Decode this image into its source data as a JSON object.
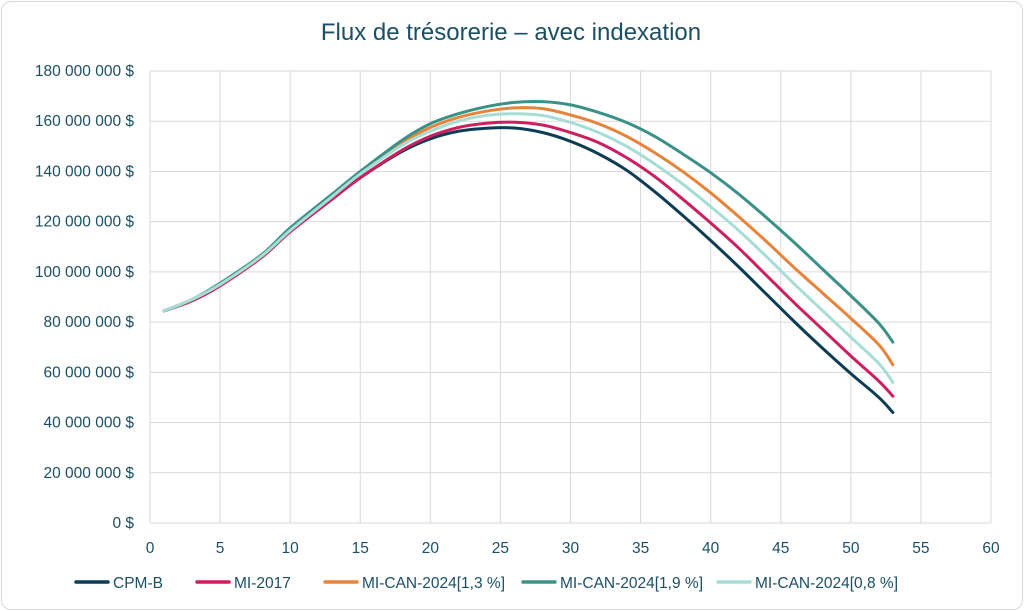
{
  "chart_data": {
    "type": "line",
    "title": "Flux de trésorerie – avec indexation",
    "xlabel": "",
    "ylabel": "",
    "xlim": [
      0,
      60
    ],
    "ylim": [
      0,
      180000000
    ],
    "x_ticks": [
      0,
      5,
      10,
      15,
      20,
      25,
      30,
      35,
      40,
      45,
      50,
      55,
      60
    ],
    "y_ticks": [
      0,
      20000000,
      40000000,
      60000000,
      80000000,
      100000000,
      120000000,
      140000000,
      160000000,
      180000000
    ],
    "y_tick_labels": [
      "0 $",
      "20 000 000 $",
      "40 000 000 $",
      "60 000 000 $",
      "80 000 000 $",
      "100 000 000 $",
      "120 000 000 $",
      "140 000 000 $",
      "160 000 000 $",
      "180 000 000 $"
    ],
    "grid": true,
    "legend_position": "bottom",
    "series": [
      {
        "name": "CPM-B",
        "color": "#0d3d55",
        "points": [
          [
            1,
            84500000
          ],
          [
            3,
            88500000
          ],
          [
            5,
            94500000
          ],
          [
            8,
            106000000
          ],
          [
            10,
            116000000
          ],
          [
            13,
            129000000
          ],
          [
            15,
            137500000
          ],
          [
            18,
            148000000
          ],
          [
            20,
            153000000
          ],
          [
            22,
            156000000
          ],
          [
            24,
            157200000
          ],
          [
            26,
            157300000
          ],
          [
            28,
            155500000
          ],
          [
            30,
            152000000
          ],
          [
            32,
            147000000
          ],
          [
            34,
            140500000
          ],
          [
            36,
            132000000
          ],
          [
            38,
            122500000
          ],
          [
            40,
            112500000
          ],
          [
            42,
            102000000
          ],
          [
            44,
            91000000
          ],
          [
            46,
            80000000
          ],
          [
            48,
            69500000
          ],
          [
            50,
            59500000
          ],
          [
            52,
            50000000
          ],
          [
            53,
            44000000
          ]
        ]
      },
      {
        "name": "MI-2017",
        "color": "#cc1f5f",
        "points": [
          [
            1,
            84500000
          ],
          [
            3,
            88500000
          ],
          [
            5,
            94500000
          ],
          [
            8,
            106000000
          ],
          [
            10,
            116000000
          ],
          [
            13,
            129000000
          ],
          [
            15,
            137500000
          ],
          [
            18,
            148500000
          ],
          [
            20,
            154000000
          ],
          [
            22,
            157500000
          ],
          [
            24,
            159200000
          ],
          [
            26,
            159600000
          ],
          [
            28,
            158500000
          ],
          [
            30,
            155500000
          ],
          [
            32,
            151500000
          ],
          [
            34,
            145500000
          ],
          [
            36,
            138000000
          ],
          [
            38,
            129000000
          ],
          [
            40,
            119500000
          ],
          [
            42,
            109500000
          ],
          [
            44,
            98500000
          ],
          [
            46,
            87500000
          ],
          [
            48,
            77000000
          ],
          [
            50,
            66500000
          ],
          [
            52,
            56500000
          ],
          [
            53,
            50500000
          ]
        ]
      },
      {
        "name": "MI-CAN-2024[1,3 %]",
        "color": "#e8833a",
        "points": [
          [
            1,
            84500000
          ],
          [
            3,
            89000000
          ],
          [
            5,
            95000000
          ],
          [
            8,
            106500000
          ],
          [
            10,
            117000000
          ],
          [
            13,
            130500000
          ],
          [
            15,
            139500000
          ],
          [
            18,
            151500000
          ],
          [
            20,
            157500000
          ],
          [
            22,
            161500000
          ],
          [
            24,
            164000000
          ],
          [
            26,
            165300000
          ],
          [
            28,
            165000000
          ],
          [
            30,
            162500000
          ],
          [
            32,
            159000000
          ],
          [
            34,
            154000000
          ],
          [
            36,
            147500000
          ],
          [
            38,
            140000000
          ],
          [
            40,
            131500000
          ],
          [
            42,
            122000000
          ],
          [
            44,
            112000000
          ],
          [
            46,
            101500000
          ],
          [
            48,
            91500000
          ],
          [
            50,
            81500000
          ],
          [
            52,
            71000000
          ],
          [
            53,
            63000000
          ]
        ]
      },
      {
        "name": "MI-CAN-2024[1,9 %]",
        "color": "#3a9188",
        "points": [
          [
            1,
            84500000
          ],
          [
            3,
            89000000
          ],
          [
            5,
            95500000
          ],
          [
            8,
            107000000
          ],
          [
            10,
            117500000
          ],
          [
            13,
            131000000
          ],
          [
            15,
            140000000
          ],
          [
            18,
            152500000
          ],
          [
            20,
            159000000
          ],
          [
            22,
            163000000
          ],
          [
            24,
            165800000
          ],
          [
            26,
            167500000
          ],
          [
            28,
            167800000
          ],
          [
            30,
            166500000
          ],
          [
            32,
            163500000
          ],
          [
            34,
            159500000
          ],
          [
            36,
            154000000
          ],
          [
            38,
            147000000
          ],
          [
            40,
            139500000
          ],
          [
            42,
            131000000
          ],
          [
            44,
            121500000
          ],
          [
            46,
            111500000
          ],
          [
            48,
            101000000
          ],
          [
            50,
            90500000
          ],
          [
            52,
            79500000
          ],
          [
            53,
            72000000
          ]
        ]
      },
      {
        "name": "MI-CAN-2024[0,8 %]",
        "color": "#a6ddd6",
        "points": [
          [
            1,
            84500000
          ],
          [
            3,
            89000000
          ],
          [
            5,
            95000000
          ],
          [
            8,
            106500000
          ],
          [
            10,
            116500000
          ],
          [
            13,
            130000000
          ],
          [
            15,
            139000000
          ],
          [
            18,
            150500000
          ],
          [
            20,
            156000000
          ],
          [
            22,
            160000000
          ],
          [
            24,
            162300000
          ],
          [
            26,
            163000000
          ],
          [
            28,
            162300000
          ],
          [
            30,
            159500000
          ],
          [
            32,
            155500000
          ],
          [
            34,
            150000000
          ],
          [
            36,
            143000000
          ],
          [
            38,
            135000000
          ],
          [
            40,
            126000000
          ],
          [
            42,
            116500000
          ],
          [
            44,
            106000000
          ],
          [
            46,
            95000000
          ],
          [
            48,
            84500000
          ],
          [
            50,
            74000000
          ],
          [
            52,
            63500000
          ],
          [
            53,
            56000000
          ]
        ]
      }
    ]
  }
}
